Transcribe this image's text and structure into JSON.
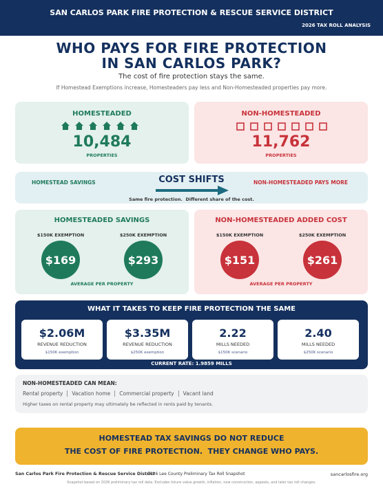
{
  "header": {
    "title": "SAN CARLOS PARK FIRE PROTECTION & RESCUE SERVICE DISTRICT",
    "subtitle": "2026 TAX ROLL ANALYSIS"
  },
  "hero": {
    "title_lines": [
      "WHO PAYS FOR FIRE PROTECTION",
      "IN SAN CARLOS PARK?"
    ],
    "subtitle": "The cost of fire protection stays the same.",
    "note": "If Homestead Exemptions increase, Homesteaders pay less and Non-Homesteaded properties pay more."
  },
  "counts": [
    {
      "label": "HOMESTEADED",
      "value": "10,484",
      "unit": "PROPERTIES"
    },
    {
      "label": "NON-HOMESTEADED",
      "value": "11,762",
      "unit": "PROPERTIES"
    }
  ],
  "shift": {
    "left": "HOMESTEAD SAVINGS",
    "title": "COST SHIFTS",
    "right": "NON-HOMESTEADED PAYS MORE",
    "note": "Same fire protection.  Different share of the cost."
  },
  "impacts": [
    {
      "title": "HOMESTEADED SAVINGS",
      "items": [
        {
          "label": "$150K EXEMPTION",
          "value": "$169"
        },
        {
          "label": "$250K EXEMPTION",
          "value": "$293"
        }
      ],
      "footer": "AVERAGE PER PROPERTY"
    },
    {
      "title": "NON-HOMESTEADED ADDED COST",
      "items": [
        {
          "label": "$150K EXEMPTION",
          "value": "$151"
        },
        {
          "label": "$250K EXEMPTION",
          "value": "$261"
        }
      ],
      "footer": "AVERAGE PER PROPERTY"
    }
  ],
  "requirements": {
    "title": "WHAT IT TAKES TO KEEP FIRE PROTECTION THE SAME",
    "cards": [
      {
        "value": "$2.06M",
        "label": "REVENUE REDUCTION",
        "note": "$150K exemption"
      },
      {
        "value": "$3.35M",
        "label": "REVENUE REDUCTION",
        "note": "$250K exemption"
      },
      {
        "value": "2.22",
        "label": "MILLS NEEDED",
        "note": "$150K scenario"
      },
      {
        "value": "2.40",
        "label": "MILLS NEEDED",
        "note": "$250K scenario"
      }
    ],
    "current_rate": "CURRENT RATE: 1.9859 MILLS"
  },
  "property_types": {
    "title": "NON-HOMESTEADED CAN MEAN:",
    "items": [
      "Rental property",
      "Vacation home",
      "Commercial property",
      "Vacant land"
    ],
    "note": "Higher taxes on rental property may ultimately be reflected in rents paid by tenants."
  },
  "callout": {
    "lines": [
      "HOMESTEAD TAX SAVINGS DO NOT REDUCE",
      "THE COST OF FIRE PROTECTION.  THEY CHANGE WHO PAYS."
    ]
  },
  "footer": {
    "left": "San Carlos Park Fire Protection & Rescue Service District",
    "center": "2026 Lee County Preliminary Tax Roll Snapshot",
    "right": "sancarlosfire.org",
    "disclaimer": "Snapshot based on 2026 preliminary tax roll data. Excludes future value growth, inflation, new construction, appeals, and later tax roll changes."
  }
}
